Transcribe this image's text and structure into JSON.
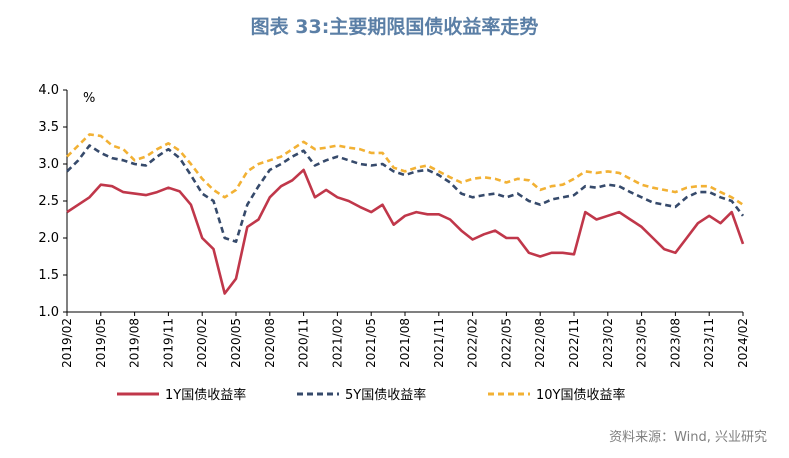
{
  "chart_data": {
    "type": "line",
    "title": "图表 33:主要期限国债收益率走势",
    "ylabel": "%",
    "ylim": [
      1.0,
      4.0
    ],
    "yticks": [
      "1.0",
      "1.5",
      "2.0",
      "2.5",
      "3.0",
      "3.5",
      "4.0"
    ],
    "xlim": [
      "2019-02",
      "2024-02"
    ],
    "xticks": [
      "2019/02",
      "2019/05",
      "2019/08",
      "2019/11",
      "2020/02",
      "2020/05",
      "2020/08",
      "2020/11",
      "2021/02",
      "2021/05",
      "2021/08",
      "2021/11",
      "2022/02",
      "2022/05",
      "2022/08",
      "2022/11",
      "2023/02",
      "2023/05",
      "2023/08",
      "2023/11",
      "2024/02"
    ],
    "grid": false,
    "legend_position": "bottom",
    "x": [
      "2019-02",
      "2019-03",
      "2019-04",
      "2019-05",
      "2019-06",
      "2019-07",
      "2019-08",
      "2019-09",
      "2019-10",
      "2019-11",
      "2019-12",
      "2020-01",
      "2020-02",
      "2020-03",
      "2020-04",
      "2020-05",
      "2020-06",
      "2020-07",
      "2020-08",
      "2020-09",
      "2020-10",
      "2020-11",
      "2020-12",
      "2021-01",
      "2021-02",
      "2021-03",
      "2021-04",
      "2021-05",
      "2021-06",
      "2021-07",
      "2021-08",
      "2021-09",
      "2021-10",
      "2021-11",
      "2021-12",
      "2022-01",
      "2022-02",
      "2022-03",
      "2022-04",
      "2022-05",
      "2022-06",
      "2022-07",
      "2022-08",
      "2022-09",
      "2022-10",
      "2022-11",
      "2022-12",
      "2023-01",
      "2023-02",
      "2023-03",
      "2023-04",
      "2023-05",
      "2023-06",
      "2023-07",
      "2023-08",
      "2023-09",
      "2023-10",
      "2023-11",
      "2023-12",
      "2024-01",
      "2024-02"
    ],
    "series": [
      {
        "name": "1Y国债收益率",
        "color": "#c0374a",
        "dash": "solid",
        "values": [
          2.35,
          2.45,
          2.55,
          2.72,
          2.7,
          2.62,
          2.6,
          2.58,
          2.62,
          2.68,
          2.63,
          2.45,
          2.0,
          1.85,
          1.25,
          1.45,
          2.15,
          2.25,
          2.55,
          2.7,
          2.78,
          2.92,
          2.55,
          2.65,
          2.55,
          2.5,
          2.42,
          2.35,
          2.45,
          2.18,
          2.3,
          2.35,
          2.32,
          2.32,
          2.25,
          2.1,
          1.98,
          2.05,
          2.1,
          2.0,
          2.0,
          1.8,
          1.75,
          1.8,
          1.8,
          1.78,
          2.35,
          2.25,
          2.3,
          2.35,
          2.25,
          2.15,
          2.0,
          1.85,
          1.8,
          2.0,
          2.2,
          2.3,
          2.2,
          2.35,
          1.92
        ]
      },
      {
        "name": "5Y国债收益率",
        "color": "#364a6b",
        "dash": "dashed",
        "values": [
          2.9,
          3.05,
          3.25,
          3.15,
          3.08,
          3.05,
          3.0,
          2.98,
          3.1,
          3.2,
          3.08,
          2.85,
          2.6,
          2.5,
          2.0,
          1.95,
          2.45,
          2.7,
          2.92,
          3.0,
          3.1,
          3.18,
          2.98,
          3.05,
          3.1,
          3.05,
          3.0,
          2.98,
          3.0,
          2.9,
          2.85,
          2.9,
          2.92,
          2.85,
          2.75,
          2.6,
          2.55,
          2.58,
          2.6,
          2.55,
          2.6,
          2.5,
          2.45,
          2.52,
          2.55,
          2.58,
          2.7,
          2.68,
          2.72,
          2.7,
          2.62,
          2.55,
          2.48,
          2.45,
          2.42,
          2.55,
          2.62,
          2.62,
          2.55,
          2.5,
          2.3
        ]
      },
      {
        "name": "10Y国债收益率",
        "color": "#f2b134",
        "dash": "dashed",
        "values": [
          3.1,
          3.25,
          3.4,
          3.38,
          3.25,
          3.2,
          3.05,
          3.1,
          3.2,
          3.28,
          3.18,
          3.0,
          2.8,
          2.65,
          2.55,
          2.65,
          2.9,
          3.0,
          3.05,
          3.1,
          3.2,
          3.3,
          3.2,
          3.22,
          3.25,
          3.22,
          3.2,
          3.15,
          3.15,
          2.95,
          2.9,
          2.95,
          2.98,
          2.9,
          2.82,
          2.75,
          2.8,
          2.82,
          2.8,
          2.75,
          2.8,
          2.78,
          2.65,
          2.7,
          2.72,
          2.8,
          2.9,
          2.88,
          2.9,
          2.88,
          2.8,
          2.72,
          2.68,
          2.65,
          2.62,
          2.68,
          2.7,
          2.7,
          2.62,
          2.55,
          2.45
        ]
      }
    ]
  },
  "source": "资料来源：Wind, 兴业研究"
}
